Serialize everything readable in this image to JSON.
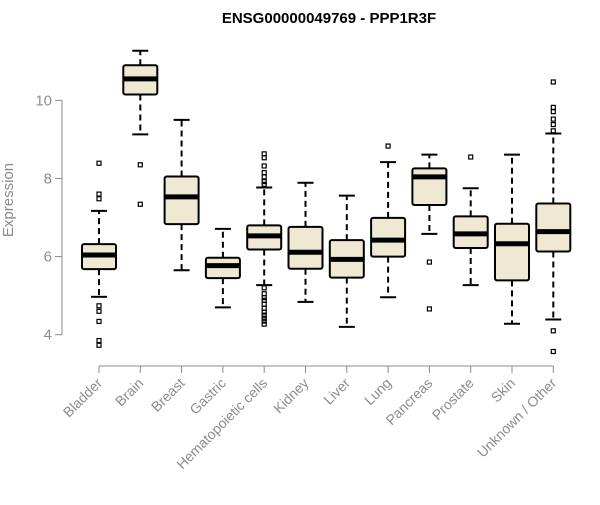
{
  "chart_data": {
    "type": "box",
    "title": "ENSG00000049769 - PPP1R3F",
    "xlabel": "",
    "ylabel": "Expression",
    "ylim": [
      3.25,
      11.75
    ],
    "yticks": [
      4,
      6,
      8,
      10
    ],
    "grid": false,
    "legend": "none",
    "colors": {
      "box_fill": "#efe9d3",
      "box_stroke": "#000000",
      "median": "#000000",
      "axis": "#8c8c8c"
    },
    "categories": [
      "Bladder",
      "Brain",
      "Breast",
      "Gastric",
      "Hematopoietic cells",
      "Kidney",
      "Liver",
      "Lung",
      "Pancreas",
      "Prostate",
      "Skin",
      "Unknown / Other"
    ],
    "boxes": [
      {
        "min": 4.97,
        "q1": 5.68,
        "median": 6.04,
        "q3": 6.32,
        "max": 7.17,
        "outliers": [
          8.39,
          7.6,
          7.48,
          4.74,
          4.6,
          4.34,
          3.85,
          3.73
        ]
      },
      {
        "min": 9.13,
        "q1": 10.15,
        "median": 10.55,
        "q3": 10.9,
        "max": 11.27,
        "outliers": [
          8.35,
          7.34
        ]
      },
      {
        "min": 5.65,
        "q1": 6.83,
        "median": 7.53,
        "q3": 8.05,
        "max": 9.5,
        "outliers": []
      },
      {
        "min": 4.7,
        "q1": 5.45,
        "median": 5.77,
        "q3": 5.97,
        "max": 6.71,
        "outliers": []
      },
      {
        "min": 5.27,
        "q1": 6.18,
        "median": 6.53,
        "q3": 6.8,
        "max": 7.77,
        "outliers": [
          8.63,
          8.53,
          8.32,
          8.15,
          8.04,
          7.92,
          7.85,
          5.2,
          5.05,
          4.95,
          4.88,
          4.78,
          4.68,
          4.58,
          4.5,
          4.42,
          4.35,
          4.27
        ]
      },
      {
        "min": 4.84,
        "q1": 5.69,
        "median": 6.11,
        "q3": 6.76,
        "max": 7.89,
        "outliers": []
      },
      {
        "min": 4.2,
        "q1": 5.46,
        "median": 5.93,
        "q3": 6.42,
        "max": 7.56,
        "outliers": []
      },
      {
        "min": 4.96,
        "q1": 6.0,
        "median": 6.42,
        "q3": 6.99,
        "max": 8.42,
        "outliers": [
          8.83
        ]
      },
      {
        "min": 6.58,
        "q1": 7.32,
        "median": 8.04,
        "q3": 8.26,
        "max": 8.61,
        "outliers": [
          5.86,
          4.66
        ]
      },
      {
        "min": 5.27,
        "q1": 6.22,
        "median": 6.58,
        "q3": 7.03,
        "max": 7.75,
        "outliers": [
          8.55
        ]
      },
      {
        "min": 4.28,
        "q1": 5.39,
        "median": 6.33,
        "q3": 6.84,
        "max": 8.61,
        "outliers": []
      },
      {
        "min": 4.39,
        "q1": 6.13,
        "median": 6.64,
        "q3": 7.36,
        "max": 9.15,
        "outliers": [
          10.47,
          9.82,
          9.71,
          9.52,
          9.38,
          9.22,
          4.1,
          3.57
        ]
      }
    ]
  }
}
